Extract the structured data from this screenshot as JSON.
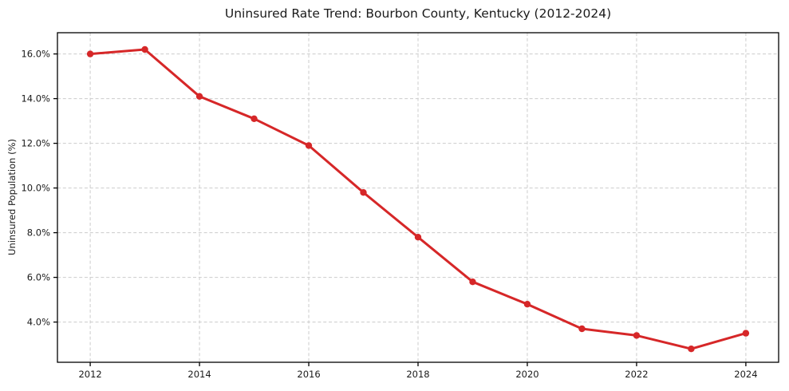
{
  "chart_data": {
    "type": "line",
    "title": "Uninsured Rate Trend: Bourbon County, Kentucky (2012-2024)",
    "xlabel": "",
    "ylabel": "Uninsured Population (%)",
    "x": [
      2012,
      2013,
      2014,
      2015,
      2016,
      2017,
      2018,
      2019,
      2020,
      2021,
      2022,
      2023,
      2024
    ],
    "values": [
      16.0,
      16.2,
      14.1,
      13.1,
      11.9,
      9.8,
      7.8,
      5.8,
      4.8,
      3.7,
      3.4,
      2.8,
      3.5
    ],
    "xlim": [
      2011.4,
      2024.6
    ],
    "ylim": [
      2.2,
      16.95
    ],
    "x_ticks": [
      2012,
      2014,
      2016,
      2018,
      2020,
      2022,
      2024
    ],
    "x_tick_labels": [
      "2012",
      "2014",
      "2016",
      "2018",
      "2020",
      "2022",
      "2024"
    ],
    "y_ticks": [
      4,
      6,
      8,
      10,
      12,
      14,
      16
    ],
    "y_tick_labels": [
      "4.0%",
      "6.0%",
      "8.0%",
      "10.0%",
      "12.0%",
      "14.0%",
      "16.0%"
    ],
    "line_color": "#d62728",
    "marker": "circle",
    "grid": true,
    "grid_color": "#cccccc",
    "spine_color": "#000000",
    "legend_position": "none"
  }
}
